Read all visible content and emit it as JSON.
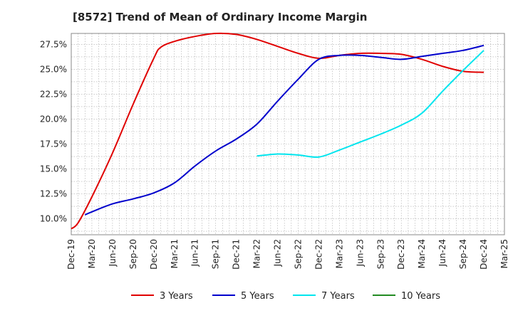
{
  "chart_data": {
    "type": "line",
    "title": "[8572]  Trend of Mean of Ordinary Income Margin",
    "xlabel": "",
    "ylabel": "",
    "x_ticks": [
      "Dec-19",
      "Mar-20",
      "Jun-20",
      "Sep-20",
      "Dec-20",
      "Mar-21",
      "Jun-21",
      "Sep-21",
      "Dec-21",
      "Mar-22",
      "Jun-22",
      "Sep-22",
      "Dec-22",
      "Mar-23",
      "Jun-23",
      "Sep-23",
      "Dec-23",
      "Mar-24",
      "Jun-24",
      "Sep-24",
      "Dec-24",
      "Mar-25"
    ],
    "y_ticks": [
      "10.0%",
      "12.5%",
      "15.0%",
      "17.5%",
      "20.0%",
      "22.5%",
      "25.0%",
      "27.5%"
    ],
    "ylim": [
      8.4,
      28.6
    ],
    "grid": true,
    "legend_position": "bottom",
    "series": [
      {
        "name": "3 Years",
        "color": "#e00000",
        "x": [
          "Dec-19",
          "Jan-20",
          "Mar-20",
          "Jun-20",
          "Sep-20",
          "Dec-20",
          "Jan-21",
          "Mar-21",
          "Jun-21",
          "Sep-21",
          "Dec-21",
          "Mar-22",
          "Jun-22",
          "Sep-22",
          "Dec-22",
          "Mar-23",
          "Jun-23",
          "Sep-23",
          "Dec-23",
          "Mar-24",
          "Jun-24",
          "Sep-24",
          "Dec-24"
        ],
        "values": [
          9.0,
          9.6,
          12.2,
          16.6,
          21.5,
          26.1,
          27.2,
          27.8,
          28.3,
          28.6,
          28.5,
          28.0,
          27.3,
          26.6,
          26.1,
          26.4,
          26.6,
          26.6,
          26.5,
          26.0,
          25.3,
          24.8,
          24.7
        ]
      },
      {
        "name": "5 Years",
        "color": "#0000cc",
        "x": [
          "Feb-20",
          "Mar-20",
          "Jun-20",
          "Sep-20",
          "Dec-20",
          "Mar-21",
          "Jun-21",
          "Sep-21",
          "Dec-21",
          "Mar-22",
          "Jun-22",
          "Sep-22",
          "Dec-22",
          "Mar-23",
          "Jun-23",
          "Sep-23",
          "Dec-23",
          "Mar-24",
          "Jun-24",
          "Sep-24",
          "Dec-24"
        ],
        "values": [
          10.4,
          10.7,
          11.5,
          12.0,
          12.6,
          13.6,
          15.3,
          16.8,
          18.0,
          19.5,
          21.8,
          24.0,
          26.0,
          26.4,
          26.4,
          26.2,
          26.0,
          26.3,
          26.6,
          26.9,
          27.4
        ]
      },
      {
        "name": "7 Years",
        "color": "#00e5ee",
        "x": [
          "Mar-22",
          "Jun-22",
          "Sep-22",
          "Dec-22",
          "Mar-23",
          "Jun-23",
          "Sep-23",
          "Dec-23",
          "Mar-24",
          "Jun-24",
          "Sep-24",
          "Dec-24"
        ],
        "values": [
          16.3,
          16.5,
          16.4,
          16.2,
          16.9,
          17.7,
          18.5,
          19.4,
          20.6,
          22.8,
          24.9,
          26.9
        ]
      },
      {
        "name": "10 Years",
        "color": "#228b22",
        "x": [],
        "values": []
      }
    ]
  }
}
